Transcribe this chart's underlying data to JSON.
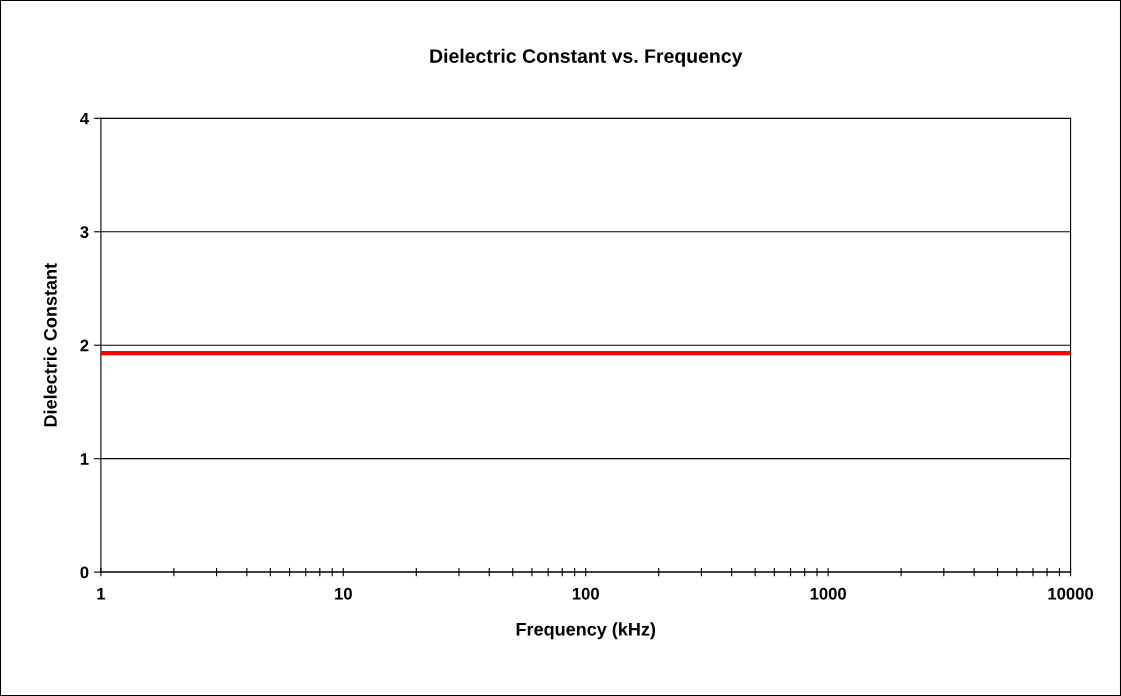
{
  "chart_data": {
    "type": "line",
    "title": "Dielectric Constant vs. Frequency",
    "xlabel": "Frequency (kHz)",
    "ylabel": "Dielectric Constant",
    "x": [
      1,
      10000
    ],
    "series": [
      {
        "color": "#ff0000",
        "values": [
          1.93,
          1.93
        ]
      }
    ],
    "log": "x",
    "xlim": [
      1,
      10000
    ],
    "ylim": [
      0,
      4
    ],
    "yticks": [
      0,
      1,
      2,
      3,
      4
    ],
    "xticks": [
      1,
      {
        "value": 2,
        "label": null
      },
      {
        "value": 3,
        "label": null
      },
      {
        "value": 4,
        "label": null
      },
      {
        "value": 5,
        "label": null
      },
      {
        "value": 6,
        "label": null
      },
      {
        "value": 7,
        "label": null
      },
      {
        "value": 8,
        "label": null
      },
      {
        "value": 9,
        "label": null
      },
      10,
      {
        "value": 20,
        "label": null
      },
      {
        "value": 30,
        "label": null
      },
      {
        "value": 40,
        "label": null
      },
      {
        "value": 50,
        "label": null
      },
      {
        "value": 60,
        "label": null
      },
      {
        "value": 70,
        "label": null
      },
      {
        "value": 80,
        "label": null
      },
      {
        "value": 90,
        "label": null
      },
      100,
      {
        "value": 200,
        "label": null
      },
      {
        "value": 300,
        "label": null
      },
      {
        "value": 400,
        "label": null
      },
      {
        "value": 500,
        "label": null
      },
      {
        "value": 600,
        "label": null
      },
      {
        "value": 700,
        "label": null
      },
      {
        "value": 800,
        "label": null
      },
      {
        "value": 900,
        "label": null
      },
      1000,
      {
        "value": 2000,
        "label": null
      },
      {
        "value": 3000,
        "label": null
      },
      {
        "value": 4000,
        "label": null
      },
      {
        "value": 5000,
        "label": null
      },
      {
        "value": 6000,
        "label": null
      },
      {
        "value": 7000,
        "label": null
      },
      {
        "value": 8000,
        "label": null
      },
      {
        "value": 9000,
        "label": null
      },
      10000
    ],
    "grid": "y",
    "marker": "none",
    "line_style": "solid"
  }
}
